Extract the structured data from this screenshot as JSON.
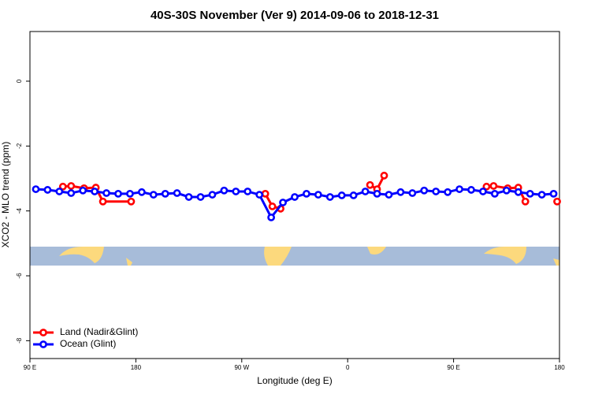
{
  "chart_data": {
    "type": "line",
    "title": "40S-30S November (Ver 9)   2014-09-06 to 2018-12-31",
    "x_label": "Longitude (deg E)",
    "y_label": "XCO2 - MLO trend (ppm)",
    "xlim": [
      90,
      540
    ],
    "xticks": [
      {
        "value": 90,
        "label": "90 E"
      },
      {
        "value": 180,
        "label": "180"
      },
      {
        "value": 270,
        "label": "90 W"
      },
      {
        "value": 360,
        "label": "0"
      },
      {
        "value": 450,
        "label": "90 E"
      },
      {
        "value": 540,
        "label": "180"
      }
    ],
    "ylim": [
      -8.55,
      1.53
    ],
    "yticks": [
      0,
      -2,
      -4,
      -6,
      -8
    ],
    "legend": "bottom-left",
    "series": [
      {
        "name": "Land (Nadir&Glint)",
        "color": "#ff0000",
        "x": [
          118,
          125,
          136,
          146,
          152,
          176,
          200,
          290,
          296,
          303,
          340,
          379,
          385,
          391,
          430,
          478,
          484,
          496,
          505,
          511,
          525,
          538
        ],
        "values": [
          -3.25,
          -3.23,
          -3.3,
          -3.28,
          -3.71,
          -3.71,
          null,
          -3.47,
          -3.86,
          -3.93,
          null,
          -3.2,
          -3.33,
          -2.91,
          null,
          -3.25,
          -3.23,
          -3.3,
          -3.28,
          -3.71,
          null,
          -3.71
        ]
      },
      {
        "name": "Ocean (Glint)",
        "color": "#0000ff",
        "x": [
          95,
          105,
          115,
          125,
          135,
          145,
          155,
          165,
          175,
          185,
          195,
          205,
          215,
          225,
          235,
          245,
          255,
          265,
          275,
          285,
          295,
          305,
          315,
          325,
          335,
          345,
          355,
          365,
          375,
          385,
          395,
          405,
          415,
          425,
          435,
          445,
          455,
          465,
          475,
          485,
          495,
          505,
          515,
          525,
          535
        ],
        "values": [
          -3.33,
          -3.35,
          -3.4,
          -3.45,
          -3.37,
          -3.4,
          -3.45,
          -3.47,
          -3.47,
          -3.42,
          -3.5,
          -3.47,
          -3.45,
          -3.57,
          -3.57,
          -3.5,
          -3.37,
          -3.4,
          -3.4,
          -3.5,
          -4.2,
          -3.74,
          -3.57,
          -3.47,
          -3.5,
          -3.57,
          -3.52,
          -3.52,
          -3.4,
          -3.47,
          -3.5,
          -3.42,
          -3.45,
          -3.37,
          -3.4,
          -3.42,
          -3.33,
          -3.35,
          -3.4,
          -3.47,
          -3.37,
          -3.42,
          -3.47,
          -3.5,
          -3.47
        ]
      }
    ]
  }
}
